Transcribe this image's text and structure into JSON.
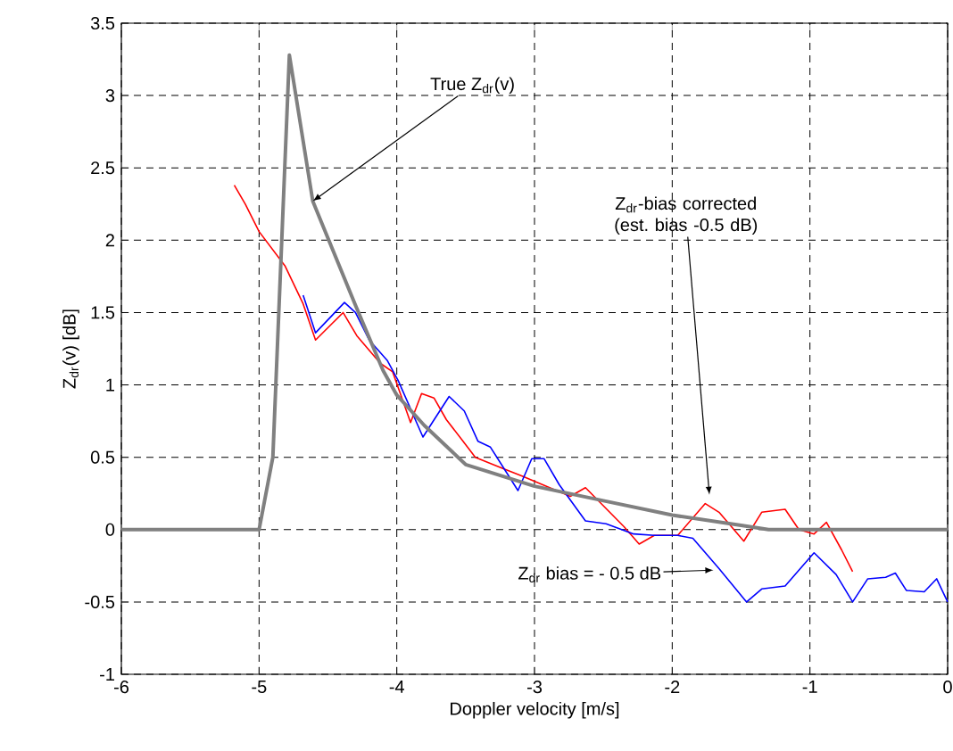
{
  "chart_data": {
    "type": "line",
    "xlabel": "Doppler velocity [m/s]",
    "ylabel": "Z$_{dr}$(v) [dB]",
    "xlim": [
      -6,
      0
    ],
    "ylim": [
      -1,
      3.5
    ],
    "xticks": [
      -6,
      -5,
      -4,
      -3,
      -2,
      -1,
      0
    ],
    "yticks": [
      -1,
      -0.5,
      0,
      0.5,
      1,
      1.5,
      2,
      2.5,
      3,
      3.5
    ],
    "grid": true,
    "line_style": "solid",
    "marker": "none",
    "series": [
      {
        "color": "#ff0000",
        "x": [
          -5.18,
          -5.1,
          -5.0,
          -4.81,
          -4.68,
          -4.59,
          -4.39,
          -4.29,
          -4.12,
          -4.03,
          -3.9,
          -3.82,
          -3.73,
          -3.64,
          -3.51,
          -3.43,
          -3.25,
          -3.09,
          -2.74,
          -2.63,
          -2.35,
          -2.24,
          -2.13,
          -1.96,
          -1.76,
          -1.66,
          -1.48,
          -1.35,
          -1.18,
          -1.08,
          -0.97,
          -0.88,
          -0.77,
          -0.69
        ],
        "values": [
          2.38,
          2.25,
          2.06,
          1.82,
          1.56,
          1.31,
          1.5,
          1.34,
          1.15,
          1.09,
          0.74,
          0.94,
          0.91,
          0.76,
          0.6,
          0.5,
          0.43,
          0.37,
          0.23,
          0.29,
          0.02,
          -0.1,
          -0.04,
          -0.04,
          0.18,
          0.12,
          -0.08,
          0.12,
          0.14,
          0.0,
          -0.03,
          0.05,
          -0.14,
          -0.29
        ]
      },
      {
        "color": "#0000ff",
        "x": [
          -4.68,
          -4.59,
          -4.38,
          -4.3,
          -4.2,
          -4.07,
          -3.99,
          -3.81,
          -3.62,
          -3.51,
          -3.41,
          -3.32,
          -3.12,
          -3.02,
          -2.93,
          -2.82,
          -2.63,
          -2.48,
          -2.28,
          -2.13,
          -1.96,
          -1.85,
          -1.66,
          -1.46,
          -1.35,
          -1.18,
          -0.97,
          -0.81,
          -0.69,
          -0.58,
          -0.45,
          -0.38,
          -0.3,
          -0.17,
          -0.08,
          0
        ],
        "values": [
          1.62,
          1.36,
          1.57,
          1.5,
          1.31,
          1.17,
          1.03,
          0.64,
          0.92,
          0.82,
          0.61,
          0.57,
          0.27,
          0.49,
          0.49,
          0.31,
          0.06,
          0.04,
          -0.03,
          -0.04,
          -0.04,
          -0.06,
          -0.27,
          -0.5,
          -0.41,
          -0.39,
          -0.16,
          -0.31,
          -0.5,
          -0.34,
          -0.33,
          -0.3,
          -0.42,
          -0.43,
          -0.34,
          -0.5
        ]
      },
      {
        "color": "#808080",
        "x": [
          -6,
          -5,
          -4.9,
          -4.78,
          -4.61,
          -4.3,
          -4.1,
          -4.0,
          -3.8,
          -3.5,
          -3.0,
          -2.5,
          -2.0,
          -1.5,
          -1.3,
          0
        ],
        "values": [
          0,
          0,
          0.5,
          3.28,
          2.27,
          1.55,
          1.1,
          0.93,
          0.72,
          0.45,
          0.3,
          0.2,
          0.1,
          0.03,
          0,
          0
        ]
      }
    ],
    "annotations": [
      {
        "text": "True Z$_{dr}$(v)",
        "x": -4.61,
        "y": 2.27
      },
      {
        "text": "Z$_{dr}$-bias corrected (est. bias -0.5 dB)",
        "x": -1.73,
        "y": 0.24
      },
      {
        "text": "Z$_{dr}$ bias = - 0.5 dB",
        "x": -1.7,
        "y": -0.28
      }
    ]
  }
}
